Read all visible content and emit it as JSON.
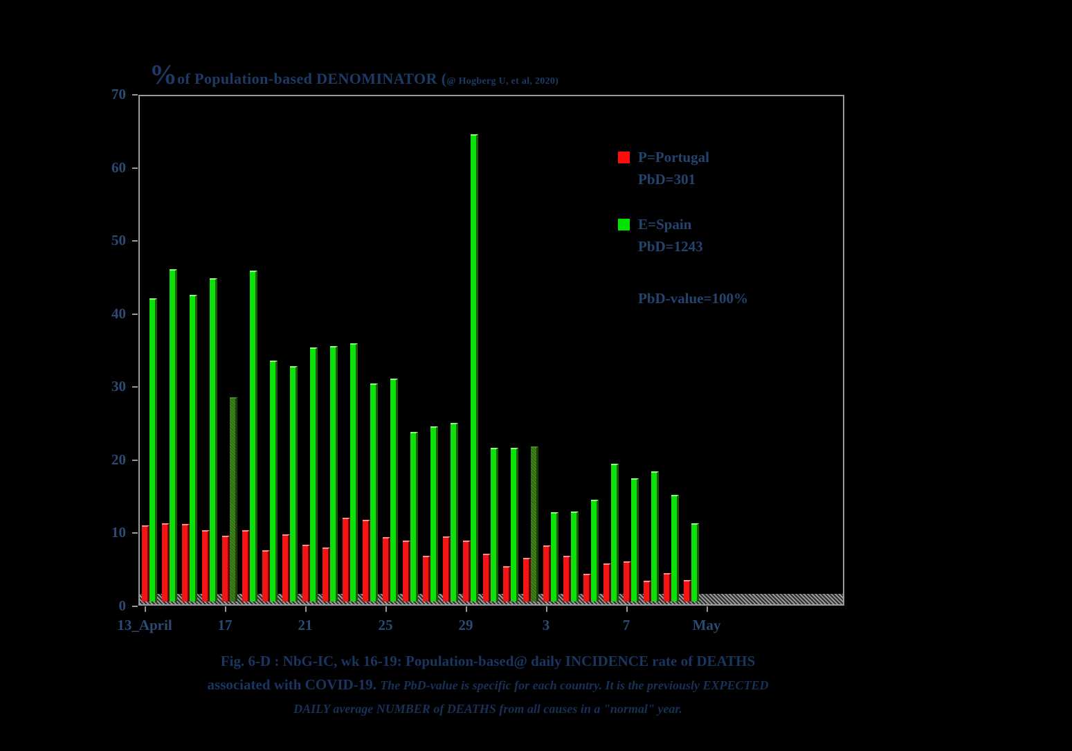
{
  "title": {
    "big": "%",
    "main": " of Population-based DENOMINATOR (",
    "small": "@ Hogberg U, et al, 2020)"
  },
  "legend": {
    "entries": [
      {
        "color": "#ff0d0d",
        "line1": "P=Portugal",
        "line2": "PbD=301"
      },
      {
        "color": "#00e400",
        "line1": "E=Spain",
        "line2": "PbD=1243"
      }
    ],
    "note": "PbD-value=100%"
  },
  "caption": {
    "line1": "Fig. 6-D : NbG-IC, wk 16-19: Population-based@ daily INCIDENCE rate of DEATHS",
    "line2_bold": "associated with COVID-19.",
    "line2_italic": " The PbD-value is specific for each country. It is the previously EXPECTED",
    "line3": "DAILY average NUMBER of DEATHS from all causes in a \"normal\" year."
  },
  "chart_data": {
    "type": "bar",
    "title": "% of Population-based DENOMINATOR (@ Hogberg U, et al, 2020)",
    "ylabel": "",
    "xlabel": "",
    "ylim": [
      0,
      70
    ],
    "yticks": [
      0,
      10,
      20,
      30,
      40,
      50,
      60,
      70
    ],
    "x_tick_labels": [
      "13_April",
      "17",
      "21",
      "25",
      "29",
      "3",
      "7",
      "May"
    ],
    "grid": false,
    "background": "#000000",
    "legend_position": "inside-top-right",
    "categories": [
      "Apr 13",
      "Apr 14",
      "Apr 15",
      "Apr 16",
      "Apr 17",
      "Apr 18",
      "Apr 19",
      "Apr 20",
      "Apr 21",
      "Apr 22",
      "Apr 23",
      "Apr 24",
      "Apr 25",
      "Apr 26",
      "Apr 27",
      "Apr 28",
      "Apr 29",
      "Apr 30",
      "May 1",
      "May 2",
      "May 3",
      "May 4",
      "May 5",
      "May 6",
      "May 7",
      "May 8",
      "May 9",
      "May 10"
    ],
    "series": [
      {
        "name": "P=Portugal PbD=301",
        "color": "#ff0d0d",
        "values": [
          10.4,
          10.7,
          10.6,
          9.8,
          9.0,
          9.8,
          7.0,
          9.2,
          7.8,
          7.4,
          11.5,
          11.2,
          8.8,
          8.3,
          6.3,
          8.9,
          8.3,
          6.5,
          4.8,
          6.0,
          7.7,
          6.3,
          3.8,
          5.2,
          5.5,
          2.8,
          3.9,
          2.9
        ]
      },
      {
        "name": "E=Spain PbD=1243",
        "color": "#00e400",
        "values": [
          41.5,
          45.5,
          42.0,
          44.3,
          28.0,
          45.3,
          33.0,
          32.2,
          34.8,
          35.0,
          35.4,
          29.9,
          30.5,
          23.2,
          24.0,
          24.5,
          64.0,
          21.0,
          21.0,
          21.2,
          12.2,
          12.3,
          13.9,
          18.9,
          16.9,
          17.8,
          14.6,
          10.7
        ],
        "dim_bars": [
          "Apr 17",
          "May 2"
        ]
      }
    ]
  }
}
